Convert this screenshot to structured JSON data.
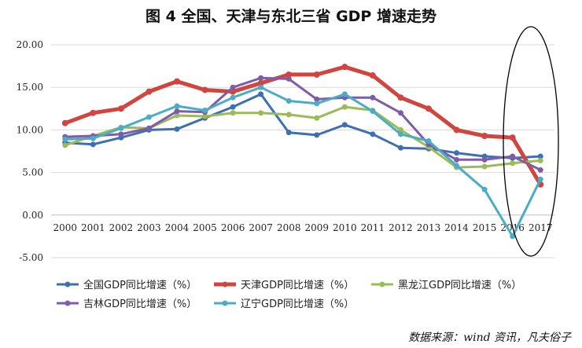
{
  "title": "图 4 全国、天津与东北三省 GDP 增速走势",
  "source": "数据来源：wind 资讯，凡夫俗子",
  "chart_data": {
    "type": "line",
    "categories": [
      "2000",
      "2001",
      "2002",
      "2003",
      "2004",
      "2005",
      "2006",
      "2007",
      "2008",
      "2009",
      "2010",
      "2011",
      "2012",
      "2013",
      "2014",
      "2015",
      "2016",
      "2017"
    ],
    "ylim": [
      -5,
      20
    ],
    "yticks": [
      "-5.00",
      "0.00",
      "5.00",
      "10.00",
      "15.00",
      "20.00"
    ],
    "grid": true,
    "legend_position": "bottom",
    "annotation": "ellipse around 2016-2017",
    "series": [
      {
        "name": "全国GDP同比增速（%）",
        "color": "#3d6fb1",
        "width": 3,
        "values": [
          8.5,
          8.3,
          9.1,
          10.0,
          10.1,
          11.4,
          12.7,
          14.2,
          9.7,
          9.4,
          10.6,
          9.5,
          7.9,
          7.8,
          7.3,
          6.9,
          6.7,
          6.9
        ]
      },
      {
        "name": "天津GDP同比增速（%）",
        "color": "#d0453f",
        "width": 5,
        "values": [
          10.8,
          12.0,
          12.5,
          14.5,
          15.7,
          14.7,
          14.5,
          15.5,
          16.5,
          16.5,
          17.4,
          16.4,
          13.8,
          12.5,
          10.0,
          9.3,
          9.1,
          3.6
        ]
      },
      {
        "name": "黑龙江GDP同比增速（%）",
        "color": "#9bbb59",
        "width": 3,
        "values": [
          8.2,
          9.3,
          10.3,
          10.2,
          11.7,
          11.6,
          12.0,
          12.0,
          11.8,
          11.4,
          12.7,
          12.3,
          10.0,
          8.0,
          5.6,
          5.7,
          6.1,
          6.4
        ]
      },
      {
        "name": "吉林GDP同比增速（%）",
        "color": "#7f5ca8",
        "width": 3,
        "values": [
          9.2,
          9.3,
          9.5,
          10.2,
          12.2,
          12.1,
          15.0,
          16.1,
          16.0,
          13.6,
          13.8,
          13.8,
          12.0,
          8.3,
          6.5,
          6.5,
          6.9,
          5.3
        ]
      },
      {
        "name": "辽宁GDP同比增速（%）",
        "color": "#4bacc6",
        "width": 3,
        "values": [
          8.9,
          9.0,
          10.2,
          11.5,
          12.8,
          12.3,
          13.8,
          15.0,
          13.4,
          13.1,
          14.2,
          12.2,
          9.5,
          8.7,
          5.8,
          3.0,
          -2.5,
          4.2
        ]
      }
    ]
  }
}
